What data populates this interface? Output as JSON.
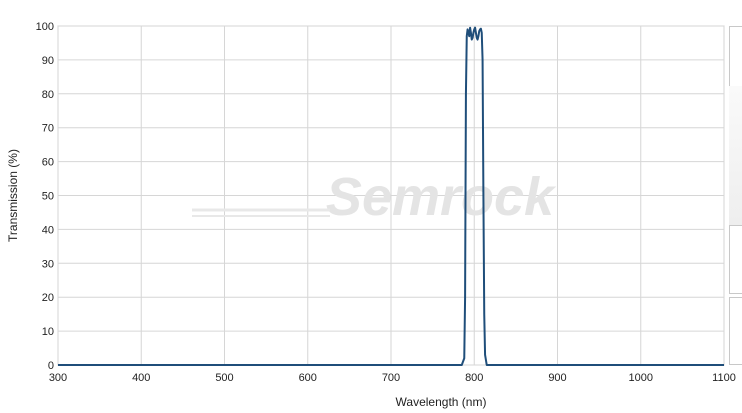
{
  "chart_data": {
    "type": "line",
    "title": "",
    "xlabel": "Wavelength (nm)",
    "ylabel": "Transmission (%)",
    "xlim": [
      300,
      1100
    ],
    "ylim": [
      0,
      100
    ],
    "xticks": [
      300,
      400,
      500,
      600,
      700,
      800,
      900,
      1000,
      1100
    ],
    "yticks": [
      0,
      10,
      20,
      30,
      40,
      50,
      60,
      70,
      80,
      90,
      100
    ],
    "grid": true,
    "watermark": "Semrock",
    "series": [
      {
        "color": "#1f4e7a",
        "points": [
          [
            300,
            0
          ],
          [
            785,
            0
          ],
          [
            788,
            2
          ],
          [
            789,
            20
          ],
          [
            790,
            80
          ],
          [
            791,
            97
          ],
          [
            792,
            99
          ],
          [
            793,
            98
          ],
          [
            794,
            97
          ],
          [
            795,
            99.5
          ],
          [
            796,
            98
          ],
          [
            797,
            96
          ],
          [
            798,
            96.5
          ],
          [
            799,
            98
          ],
          [
            800,
            99
          ],
          [
            801,
            99.5
          ],
          [
            802,
            98
          ],
          [
            803,
            96.5
          ],
          [
            804,
            96
          ],
          [
            805,
            97
          ],
          [
            806,
            98.5
          ],
          [
            807,
            99
          ],
          [
            808,
            99.2
          ],
          [
            809,
            98
          ],
          [
            810,
            90
          ],
          [
            811,
            50
          ],
          [
            812,
            15
          ],
          [
            813,
            3
          ],
          [
            815,
            0
          ],
          [
            1100,
            0
          ]
        ]
      }
    ]
  }
}
